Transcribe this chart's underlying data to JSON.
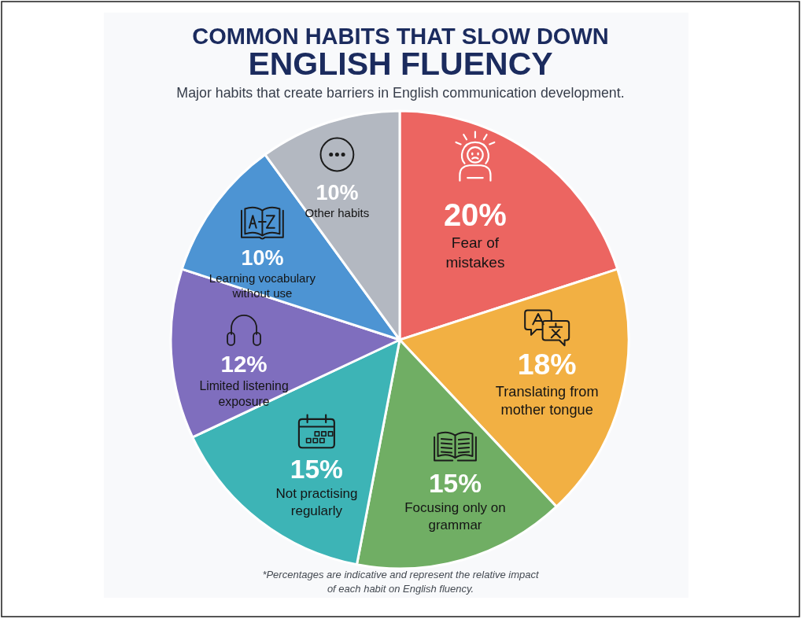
{
  "chart_data": {
    "type": "pie",
    "title": "COMMON HABITS THAT SLOW DOWN\nENGLISH FLUENCY",
    "subtitle": "Major habits that create barriers in English communication development.",
    "categories": [
      "Fear of\nmistakes",
      "Translating from\nmother tongue",
      "Focusing only on\ngrammar",
      "Not practising\nregularly",
      "Limited listening\nexposure",
      "Learning vocabulary\nwithout use",
      "Other habits"
    ],
    "values": [
      20,
      18,
      15,
      15,
      12,
      10,
      10
    ],
    "colors": [
      "#ec6561",
      "#f2b043",
      "#70ae64",
      "#3db4b6",
      "#7f6ebe",
      "#4d94d3",
      "#b3b8c1"
    ],
    "value_labels": [
      "20%",
      "18%",
      "15%",
      "15%",
      "12%",
      "10%",
      "10%"
    ],
    "annotations": [
      "*Percentages are indicative and represent the relative impact\nof each habit on English fluency."
    ]
  }
}
